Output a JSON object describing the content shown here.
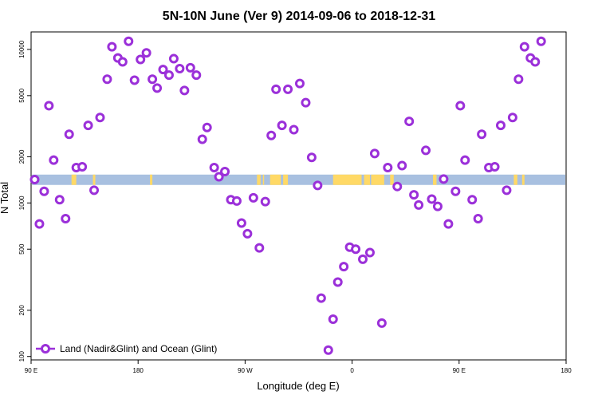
{
  "chart_data": {
    "type": "scatter",
    "title": "5N-10N June (Ver 9)   2014-09-06 to 2018-12-31",
    "xlabel": "Longitude (deg E)",
    "ylabel": "N Total",
    "x_scale": "linear",
    "y_scale": "log",
    "xlim": [
      90,
      540
    ],
    "ylim": [
      95,
      13000
    ],
    "x_ticks": [
      {
        "value": 90,
        "label": "90 E"
      },
      {
        "value": 180,
        "label": "180"
      },
      {
        "value": 270,
        "label": "90 W"
      },
      {
        "value": 360,
        "label": "0"
      },
      {
        "value": 450,
        "label": "90 E"
      },
      {
        "value": 540,
        "label": "180"
      }
    ],
    "y_ticks": [
      {
        "value": 100,
        "label": "100"
      },
      {
        "value": 200,
        "label": "200"
      },
      {
        "value": 500,
        "label": "500"
      },
      {
        "value": 1000,
        "label": "1000"
      },
      {
        "value": 2000,
        "label": "2000"
      },
      {
        "value": 5000,
        "label": "5000"
      },
      {
        "value": 10000,
        "label": "10000"
      }
    ],
    "grid": false,
    "legend": {
      "position": "bottom-left",
      "entries": [
        "Land (Nadir&Glint) and Ocean (Glint)"
      ]
    },
    "colors": {
      "series": "#9b30d9",
      "ocean_band": "#a8c0e0",
      "land_band": "#ffd966"
    },
    "band": {
      "y_low": 1310,
      "y_high": 1530
    },
    "land_segments": [
      [
        124,
        128
      ],
      [
        142,
        144
      ],
      [
        190,
        192
      ],
      [
        280,
        283
      ],
      [
        285,
        286
      ],
      [
        291,
        300
      ],
      [
        302,
        306
      ],
      [
        344,
        368
      ],
      [
        370,
        375
      ],
      [
        376,
        387
      ],
      [
        392,
        395
      ],
      [
        428,
        431
      ],
      [
        496,
        499
      ],
      [
        503,
        505
      ]
    ],
    "series": [
      {
        "name": "Land (Nadir&Glint) and Ocean (Glint)",
        "points": [
          [
            93,
            1420
          ],
          [
            97,
            730
          ],
          [
            101,
            1190
          ],
          [
            105,
            4300
          ],
          [
            109,
            1900
          ],
          [
            114,
            1050
          ],
          [
            119,
            790
          ],
          [
            122,
            2800
          ],
          [
            128,
            1700
          ],
          [
            133,
            1720
          ],
          [
            138,
            3200
          ],
          [
            143,
            1210
          ],
          [
            148,
            3600
          ],
          [
            154,
            6400
          ],
          [
            158,
            10400
          ],
          [
            163,
            8800
          ],
          [
            167,
            8300
          ],
          [
            172,
            11300
          ],
          [
            177,
            6300
          ],
          [
            182,
            8600
          ],
          [
            187,
            9500
          ],
          [
            192,
            6400
          ],
          [
            196,
            5600
          ],
          [
            201,
            7400
          ],
          [
            206,
            6800
          ],
          [
            210,
            8700
          ],
          [
            215,
            7500
          ],
          [
            219,
            5400
          ],
          [
            224,
            7600
          ],
          [
            229,
            6800
          ],
          [
            234,
            2600
          ],
          [
            238,
            3100
          ],
          [
            244,
            1700
          ],
          [
            248,
            1480
          ],
          [
            253,
            1600
          ],
          [
            258,
            1050
          ],
          [
            263,
            1030
          ],
          [
            267,
            740
          ],
          [
            272,
            630
          ],
          [
            277,
            1080
          ],
          [
            282,
            510
          ],
          [
            287,
            1020
          ],
          [
            292,
            2750
          ],
          [
            296,
            5500
          ],
          [
            301,
            3200
          ],
          [
            306,
            5500
          ],
          [
            311,
            3000
          ],
          [
            316,
            6000
          ],
          [
            321,
            4500
          ],
          [
            326,
            1980
          ],
          [
            331,
            1300
          ],
          [
            334,
            240
          ],
          [
            340,
            110
          ],
          [
            344,
            175
          ],
          [
            348,
            305
          ],
          [
            353,
            385
          ],
          [
            358,
            515
          ],
          [
            363,
            500
          ],
          [
            369,
            430
          ],
          [
            375,
            475
          ],
          [
            379,
            2100
          ],
          [
            385,
            165
          ],
          [
            390,
            1700
          ],
          [
            398,
            1280
          ],
          [
            402,
            1750
          ],
          [
            408,
            3400
          ],
          [
            412,
            1130
          ],
          [
            416,
            970
          ],
          [
            422,
            2200
          ],
          [
            427,
            1060
          ],
          [
            432,
            950
          ],
          [
            437,
            1430
          ],
          [
            441,
            730
          ],
          [
            447,
            1190
          ],
          [
            451,
            4300
          ],
          [
            455,
            1900
          ],
          [
            461,
            1050
          ],
          [
            466,
            790
          ],
          [
            469,
            2800
          ],
          [
            475,
            1700
          ],
          [
            480,
            1720
          ],
          [
            485,
            3200
          ],
          [
            490,
            1210
          ],
          [
            495,
            3600
          ],
          [
            500,
            6400
          ],
          [
            505,
            10400
          ],
          [
            510,
            8800
          ],
          [
            514,
            8300
          ],
          [
            519,
            11300
          ]
        ]
      }
    ]
  }
}
